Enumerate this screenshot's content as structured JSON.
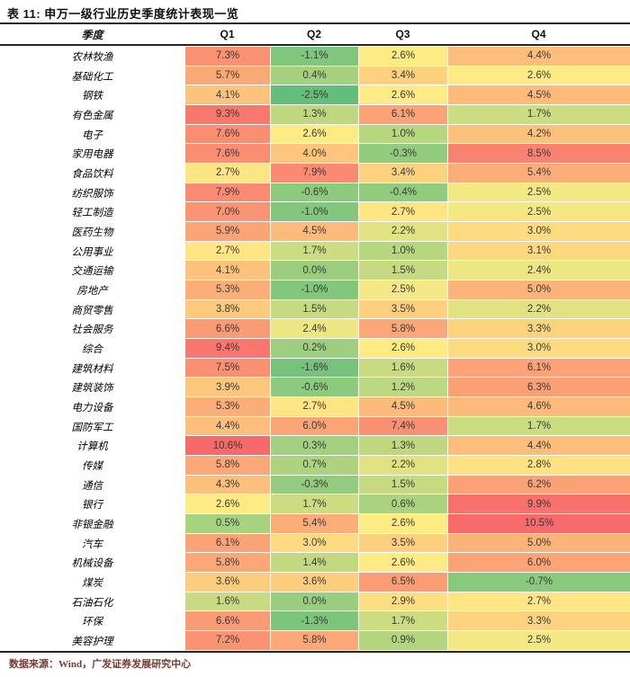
{
  "title": "表 11: 申万一级行业历史季度统计表现一览",
  "header": {
    "row_label": "季度",
    "columns": [
      "Q1",
      "Q2",
      "Q3",
      "Q4"
    ]
  },
  "footer": {
    "source": "数据来源：Wind，广发证券发展研究中心"
  },
  "heatmap": {
    "min": -2.5,
    "mid": 2.6,
    "max": 10.6,
    "green": "#63BE7B",
    "yellow": "#FFEB84",
    "red": "#F8696B",
    "gamma_low": 0.65,
    "gamma_high": 0.7,
    "rule_color": "#262626",
    "source_text_color": "#7a3a30"
  },
  "chart_data": {
    "type": "heatmap",
    "title": "表 11: 申万一级行业历史季度统计表现一览",
    "row_label_header": "季度",
    "columns": [
      "Q1",
      "Q2",
      "Q3",
      "Q4"
    ],
    "unit": "%",
    "rows": [
      "农林牧渔",
      "基础化工",
      "钢铁",
      "有色金属",
      "电子",
      "家用电器",
      "食品饮料",
      "纺织服饰",
      "轻工制造",
      "医药生物",
      "公用事业",
      "交通运输",
      "房地产",
      "商贸零售",
      "社会服务",
      "综合",
      "建筑材料",
      "建筑装饰",
      "电力设备",
      "国防军工",
      "计算机",
      "传媒",
      "通信",
      "银行",
      "非银金融",
      "汽车",
      "机械设备",
      "煤炭",
      "石油石化",
      "环保",
      "美容护理"
    ],
    "values_pct": [
      [
        7.3,
        -1.1,
        2.6,
        4.4
      ],
      [
        5.7,
        0.4,
        3.4,
        2.6
      ],
      [
        4.1,
        -2.5,
        2.6,
        4.5
      ],
      [
        9.3,
        1.3,
        6.1,
        1.7
      ],
      [
        7.6,
        2.6,
        1.0,
        4.2
      ],
      [
        7.6,
        4.0,
        -0.3,
        8.5
      ],
      [
        2.7,
        7.9,
        3.4,
        5.4
      ],
      [
        7.9,
        -0.6,
        -0.4,
        2.5
      ],
      [
        7.0,
        -1.0,
        2.7,
        2.5
      ],
      [
        5.9,
        4.5,
        2.2,
        3.0
      ],
      [
        2.7,
        1.7,
        1.0,
        3.1
      ],
      [
        4.1,
        0.0,
        1.5,
        2.4
      ],
      [
        5.3,
        -1.0,
        2.5,
        5.0
      ],
      [
        3.8,
        1.5,
        3.5,
        2.2
      ],
      [
        6.6,
        2.4,
        5.8,
        3.3
      ],
      [
        9.4,
        0.2,
        2.6,
        3.0
      ],
      [
        7.5,
        -1.6,
        1.6,
        6.1
      ],
      [
        3.9,
        -0.6,
        1.2,
        6.3
      ],
      [
        5.3,
        2.7,
        4.5,
        4.6
      ],
      [
        4.4,
        6.0,
        7.4,
        1.7
      ],
      [
        10.6,
        0.3,
        1.3,
        4.4
      ],
      [
        5.8,
        0.7,
        2.2,
        2.8
      ],
      [
        4.3,
        -0.3,
        1.5,
        6.2
      ],
      [
        2.6,
        1.7,
        0.6,
        9.9
      ],
      [
        0.5,
        5.4,
        2.6,
        10.5
      ],
      [
        6.1,
        3.0,
        3.5,
        5.0
      ],
      [
        5.8,
        1.4,
        2.6,
        6.0
      ],
      [
        3.6,
        3.6,
        6.5,
        -0.7
      ],
      [
        1.6,
        0.0,
        2.9,
        2.7
      ],
      [
        6.6,
        -1.3,
        1.7,
        3.3
      ],
      [
        7.2,
        5.8,
        0.9,
        2.5
      ]
    ],
    "color_scale": {
      "min_color": "#63BE7B",
      "mid_color": "#FFEB84",
      "max_color": "#F8696B",
      "min_value": -2.5,
      "mid_value": 2.6,
      "max_value": 10.6
    },
    "source": "数据来源：Wind，广发证券发展研究中心",
    "legend_position": "none",
    "grid": false
  }
}
